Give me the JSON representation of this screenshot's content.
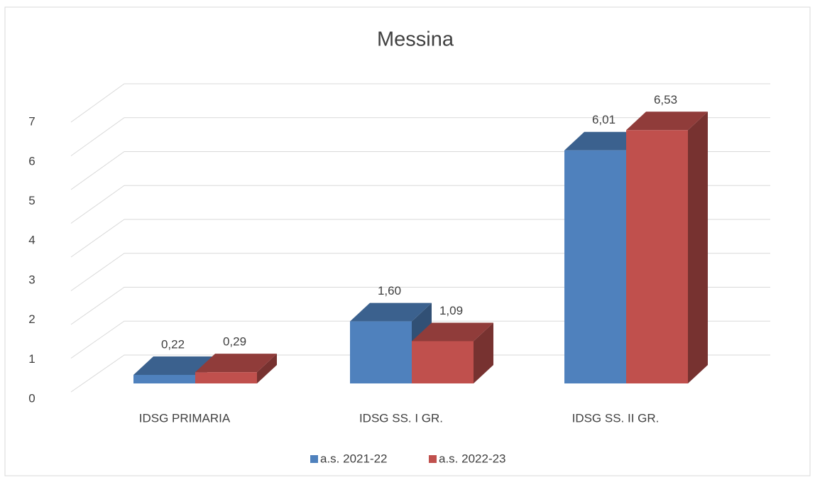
{
  "chart_data": {
    "type": "bar3d",
    "title": "Messina",
    "categories": [
      "IDSG PRIMARIA",
      "IDSG SS. I GR.",
      "IDSG SS. II GR."
    ],
    "series": [
      {
        "name": "a.s. 2021-22",
        "color": "#4f81bd",
        "values": [
          0.22,
          1.6,
          6.01
        ],
        "value_labels": [
          "0,22",
          "1,60",
          "6,01"
        ]
      },
      {
        "name": "a.s. 2022-23",
        "color": "#c0504d",
        "values": [
          0.29,
          1.09,
          6.53
        ],
        "value_labels": [
          "0,29",
          "1,09",
          "6,53"
        ]
      }
    ],
    "ylim": [
      0,
      8
    ],
    "yticks": [
      0,
      1,
      2,
      3,
      4,
      5,
      6,
      7
    ],
    "grid": true,
    "legend": "bottom"
  }
}
